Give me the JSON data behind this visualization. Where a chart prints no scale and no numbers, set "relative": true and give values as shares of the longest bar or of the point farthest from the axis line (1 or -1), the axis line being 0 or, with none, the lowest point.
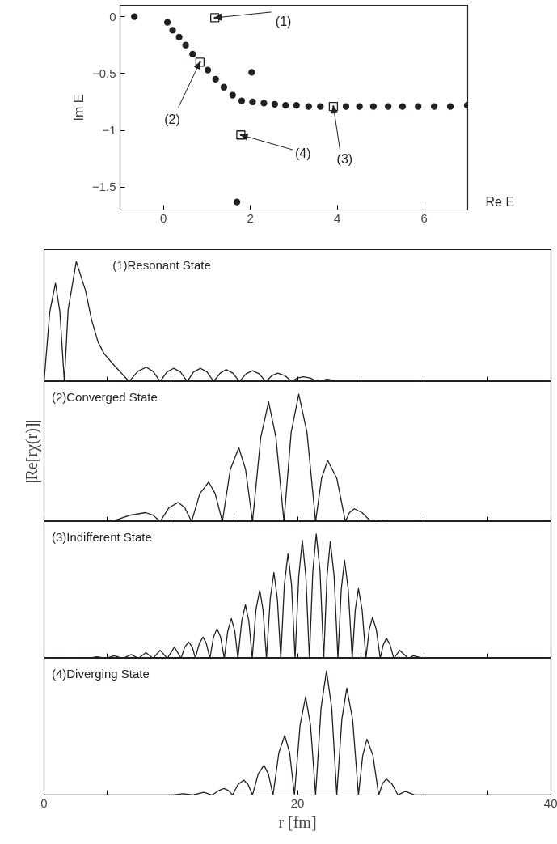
{
  "chart_data": [
    {
      "type": "scatter",
      "xlabel": "Re E",
      "ylabel": "Im E",
      "xlim": [
        -1,
        7
      ],
      "ylim": [
        -1.7,
        0.1
      ],
      "xticks": [
        0,
        2,
        4,
        6
      ],
      "yticks": [
        0,
        {
          "value": -0.5,
          "label": "−0.5"
        },
        {
          "value": -1,
          "label": "−1"
        },
        {
          "value": -1.5,
          "label": "−1.5"
        }
      ],
      "series": [
        {
          "color": "#231f20",
          "marker": "circle",
          "x": [
            -0.67,
            0.09,
            0.21,
            0.36,
            0.51,
            0.67,
            1.02,
            1.2,
            1.39,
            1.59,
            1.8,
            2.05,
            2.31,
            2.56,
            2.81,
            3.06,
            3.34,
            3.61,
            4.2,
            4.51,
            4.83,
            5.17,
            5.5,
            5.86,
            6.23,
            6.6,
            6.99,
            2.03,
            1.69
          ],
          "values": [
            0,
            -0.05,
            -0.12,
            -0.18,
            -0.25,
            -0.33,
            -0.47,
            -0.55,
            -0.62,
            -0.69,
            -0.74,
            -0.75,
            -0.76,
            -0.77,
            -0.78,
            -0.78,
            -0.79,
            -0.79,
            -0.79,
            -0.79,
            -0.79,
            -0.79,
            -0.79,
            -0.79,
            -0.79,
            -0.79,
            -0.78,
            -0.49,
            -1.63
          ]
        },
        {
          "color": "#231f20",
          "marker": "square",
          "x": [
            1.18,
            0.84,
            3.91,
            1.78
          ],
          "values": [
            -0.01,
            -0.4,
            -0.79,
            -1.04
          ]
        }
      ],
      "annotations": [
        {
          "text": "(1)",
          "x": 1.18,
          "y": -0.01
        },
        {
          "text": "(2)",
          "x": 0.84,
          "y": -0.4
        },
        {
          "text": "(3)",
          "x": 3.91,
          "y": -0.79
        },
        {
          "text": "(4)",
          "x": 1.78,
          "y": -1.04
        }
      ]
    },
    {
      "type": "line",
      "title": "(1)Resonant State",
      "relative": true,
      "xlim": [
        0,
        40
      ],
      "xticks": [
        0,
        {
          "value": 5,
          "label": null
        },
        10,
        {
          "value": 15,
          "label": null
        },
        20,
        {
          "value": 25,
          "label": null
        },
        30,
        {
          "value": 35,
          "label": null
        },
        40
      ],
      "tick_labels": false,
      "series": [
        {
          "color": "#231f20",
          "x": [
            0,
            0.45,
            0.9,
            1.25,
            1.6,
            1.9,
            2.54,
            3.27,
            3.76,
            4.26,
            4.75,
            5.49,
            6.71,
            7.4,
            8.06,
            8.6,
            9.16,
            9.7,
            10.22,
            10.76,
            11.3,
            11.8,
            12.35,
            12.86,
            13.38,
            13.9,
            14.36,
            14.9,
            15.42,
            15.95,
            16.45,
            16.97,
            17.5,
            18.0,
            18.44,
            19.0,
            19.54,
            20.0,
            20.45,
            21.0,
            21.55,
            22.36,
            23.27,
            24.1,
            26.0,
            40
          ],
          "values": [
            0,
            0.58,
            0.82,
            0.58,
            0,
            0.6,
            1.0,
            0.76,
            0.51,
            0.33,
            0.23,
            0.14,
            0,
            0.085,
            0.12,
            0.085,
            0,
            0.08,
            0.11,
            0.08,
            0,
            0.08,
            0.11,
            0.08,
            0,
            0.07,
            0.1,
            0.07,
            0,
            0.065,
            0.09,
            0.065,
            0,
            0.05,
            0.07,
            0.05,
            0,
            0.03,
            0.04,
            0.03,
            0,
            0.02,
            0,
            0.005,
            0,
            0
          ]
        }
      ]
    },
    {
      "type": "line",
      "title": "(2)Converged State",
      "ylabel": "|Re[rχ(r)]|",
      "relative": true,
      "xlim": [
        0,
        40
      ],
      "xticks": [
        0,
        {
          "value": 5,
          "label": null
        },
        10,
        {
          "value": 15,
          "label": null
        },
        20,
        {
          "value": 25,
          "label": null
        },
        30,
        {
          "value": 35,
          "label": null
        },
        40
      ],
      "tick_labels": false,
      "series": [
        {
          "color": "#231f20",
          "x": [
            0,
            5.04,
            5.48,
            6.8,
            8.01,
            8.6,
            9.16,
            9.87,
            10.59,
            11.1,
            11.64,
            12.3,
            12.99,
            13.5,
            14.07,
            14.7,
            15.37,
            15.9,
            16.45,
            17.1,
            17.72,
            18.3,
            18.93,
            19.5,
            20.1,
            20.75,
            21.43,
            21.9,
            22.38,
            23.1,
            23.78,
            24.1,
            24.49,
            25.1,
            25.79,
            26.46,
            27.5,
            40
          ],
          "values": [
            0,
            0,
            0.005,
            0.05,
            0.07,
            0.05,
            0,
            0.11,
            0.15,
            0.11,
            0,
            0.22,
            0.31,
            0.22,
            0,
            0.41,
            0.58,
            0.41,
            0,
            0.66,
            0.94,
            0.66,
            0,
            0.7,
            1.0,
            0.7,
            0,
            0.34,
            0.48,
            0.34,
            0,
            0.07,
            0.1,
            0.07,
            0,
            0.01,
            0,
            0
          ]
        }
      ]
    },
    {
      "type": "line",
      "title": "(3)Indifferent State",
      "relative": true,
      "xlim": [
        0,
        40
      ],
      "xticks": [
        0,
        {
          "value": 5,
          "label": null
        },
        10,
        {
          "value": 15,
          "label": null
        },
        20,
        {
          "value": 25,
          "label": null
        },
        30,
        {
          "value": 35,
          "label": null
        },
        40
      ],
      "tick_labels": false,
      "series": [
        {
          "color": "#231f20",
          "x": [
            0,
            2.1,
            2.79,
            3.52,
            4.16,
            4.87,
            5.56,
            6.22,
            6.88,
            7.45,
            8.04,
            8.6,
            9.16,
            9.73,
            10.29,
            10.81,
            11.1,
            11.42,
            11.7,
            11.94,
            12.25,
            12.55,
            12.8,
            13.09,
            13.37,
            13.65,
            13.93,
            14.22,
            14.5,
            14.78,
            15.05,
            15.3,
            15.6,
            15.89,
            16.16,
            16.43,
            16.72,
            17.02,
            17.28,
            17.55,
            17.85,
            18.14,
            18.41,
            18.68,
            18.96,
            19.25,
            19.53,
            19.81,
            20.1,
            20.38,
            20.66,
            20.94,
            21.21,
            21.48,
            21.78,
            22.07,
            22.33,
            22.59,
            22.89,
            23.19,
            23.45,
            23.71,
            24.01,
            24.32,
            24.56,
            24.81,
            25.1,
            25.4,
            25.66,
            25.92,
            26.22,
            26.53,
            26.77,
            27.02,
            27.3,
            27.6,
            28.07,
            28.74,
            29.15,
            29.89,
            40
          ],
          "values": [
            0,
            0,
            0.005,
            0,
            0.012,
            0,
            0.02,
            0,
            0.03,
            0,
            0.045,
            0,
            0.064,
            0,
            0.09,
            0,
            0.09,
            0.13,
            0.09,
            0,
            0.12,
            0.17,
            0.12,
            0,
            0.17,
            0.24,
            0.17,
            0,
            0.22,
            0.32,
            0.22,
            0,
            0.3,
            0.43,
            0.3,
            0,
            0.39,
            0.55,
            0.39,
            0,
            0.48,
            0.69,
            0.48,
            0,
            0.59,
            0.84,
            0.59,
            0,
            0.66,
            0.95,
            0.66,
            0,
            0.7,
            1.0,
            0.7,
            0,
            0.66,
            0.94,
            0.66,
            0,
            0.55,
            0.79,
            0.55,
            0,
            0.39,
            0.56,
            0.39,
            0,
            0.23,
            0.33,
            0.23,
            0,
            0.11,
            0.16,
            0.11,
            0,
            0.064,
            0,
            0.02,
            0,
            0
          ]
        }
      ]
    },
    {
      "type": "line",
      "title": "(4)Diverging State",
      "xlabel": "r [fm]",
      "relative": true,
      "xlim": [
        0,
        40
      ],
      "xticks": [
        0,
        {
          "value": 5,
          "label": null
        },
        {
          "value": 10,
          "label": null
        },
        {
          "value": 15,
          "label": null
        },
        20,
        {
          "value": 25,
          "label": null
        },
        {
          "value": 30,
          "label": null
        },
        {
          "value": 35,
          "label": null
        },
        40
      ],
      "tick_labels": "x",
      "series": [
        {
          "color": "#231f20",
          "x": [
            0,
            9.5,
            10.15,
            11.0,
            11.74,
            12.6,
            13.26,
            13.8,
            14.19,
            14.55,
            14.88,
            15.3,
            15.76,
            16.1,
            16.45,
            16.9,
            17.35,
            17.7,
            18.07,
            18.53,
            18.99,
            19.38,
            19.76,
            20.2,
            20.64,
            21.03,
            21.43,
            21.86,
            22.29,
            22.7,
            23.1,
            23.5,
            23.89,
            24.35,
            24.81,
            25.15,
            25.48,
            25.95,
            26.41,
            26.7,
            27.0,
            27.45,
            27.93,
            28.5,
            29.28,
            40
          ],
          "values": [
            0,
            0,
            0,
            0.01,
            0,
            0.022,
            0,
            0.037,
            0.053,
            0.037,
            0,
            0.085,
            0.12,
            0.085,
            0,
            0.17,
            0.24,
            0.17,
            0,
            0.34,
            0.48,
            0.34,
            0,
            0.56,
            0.79,
            0.56,
            0,
            0.7,
            1.0,
            0.7,
            0,
            0.61,
            0.86,
            0.61,
            0,
            0.32,
            0.45,
            0.32,
            0,
            0.09,
            0.13,
            0.09,
            0,
            0.03,
            0,
            0
          ]
        }
      ]
    }
  ]
}
